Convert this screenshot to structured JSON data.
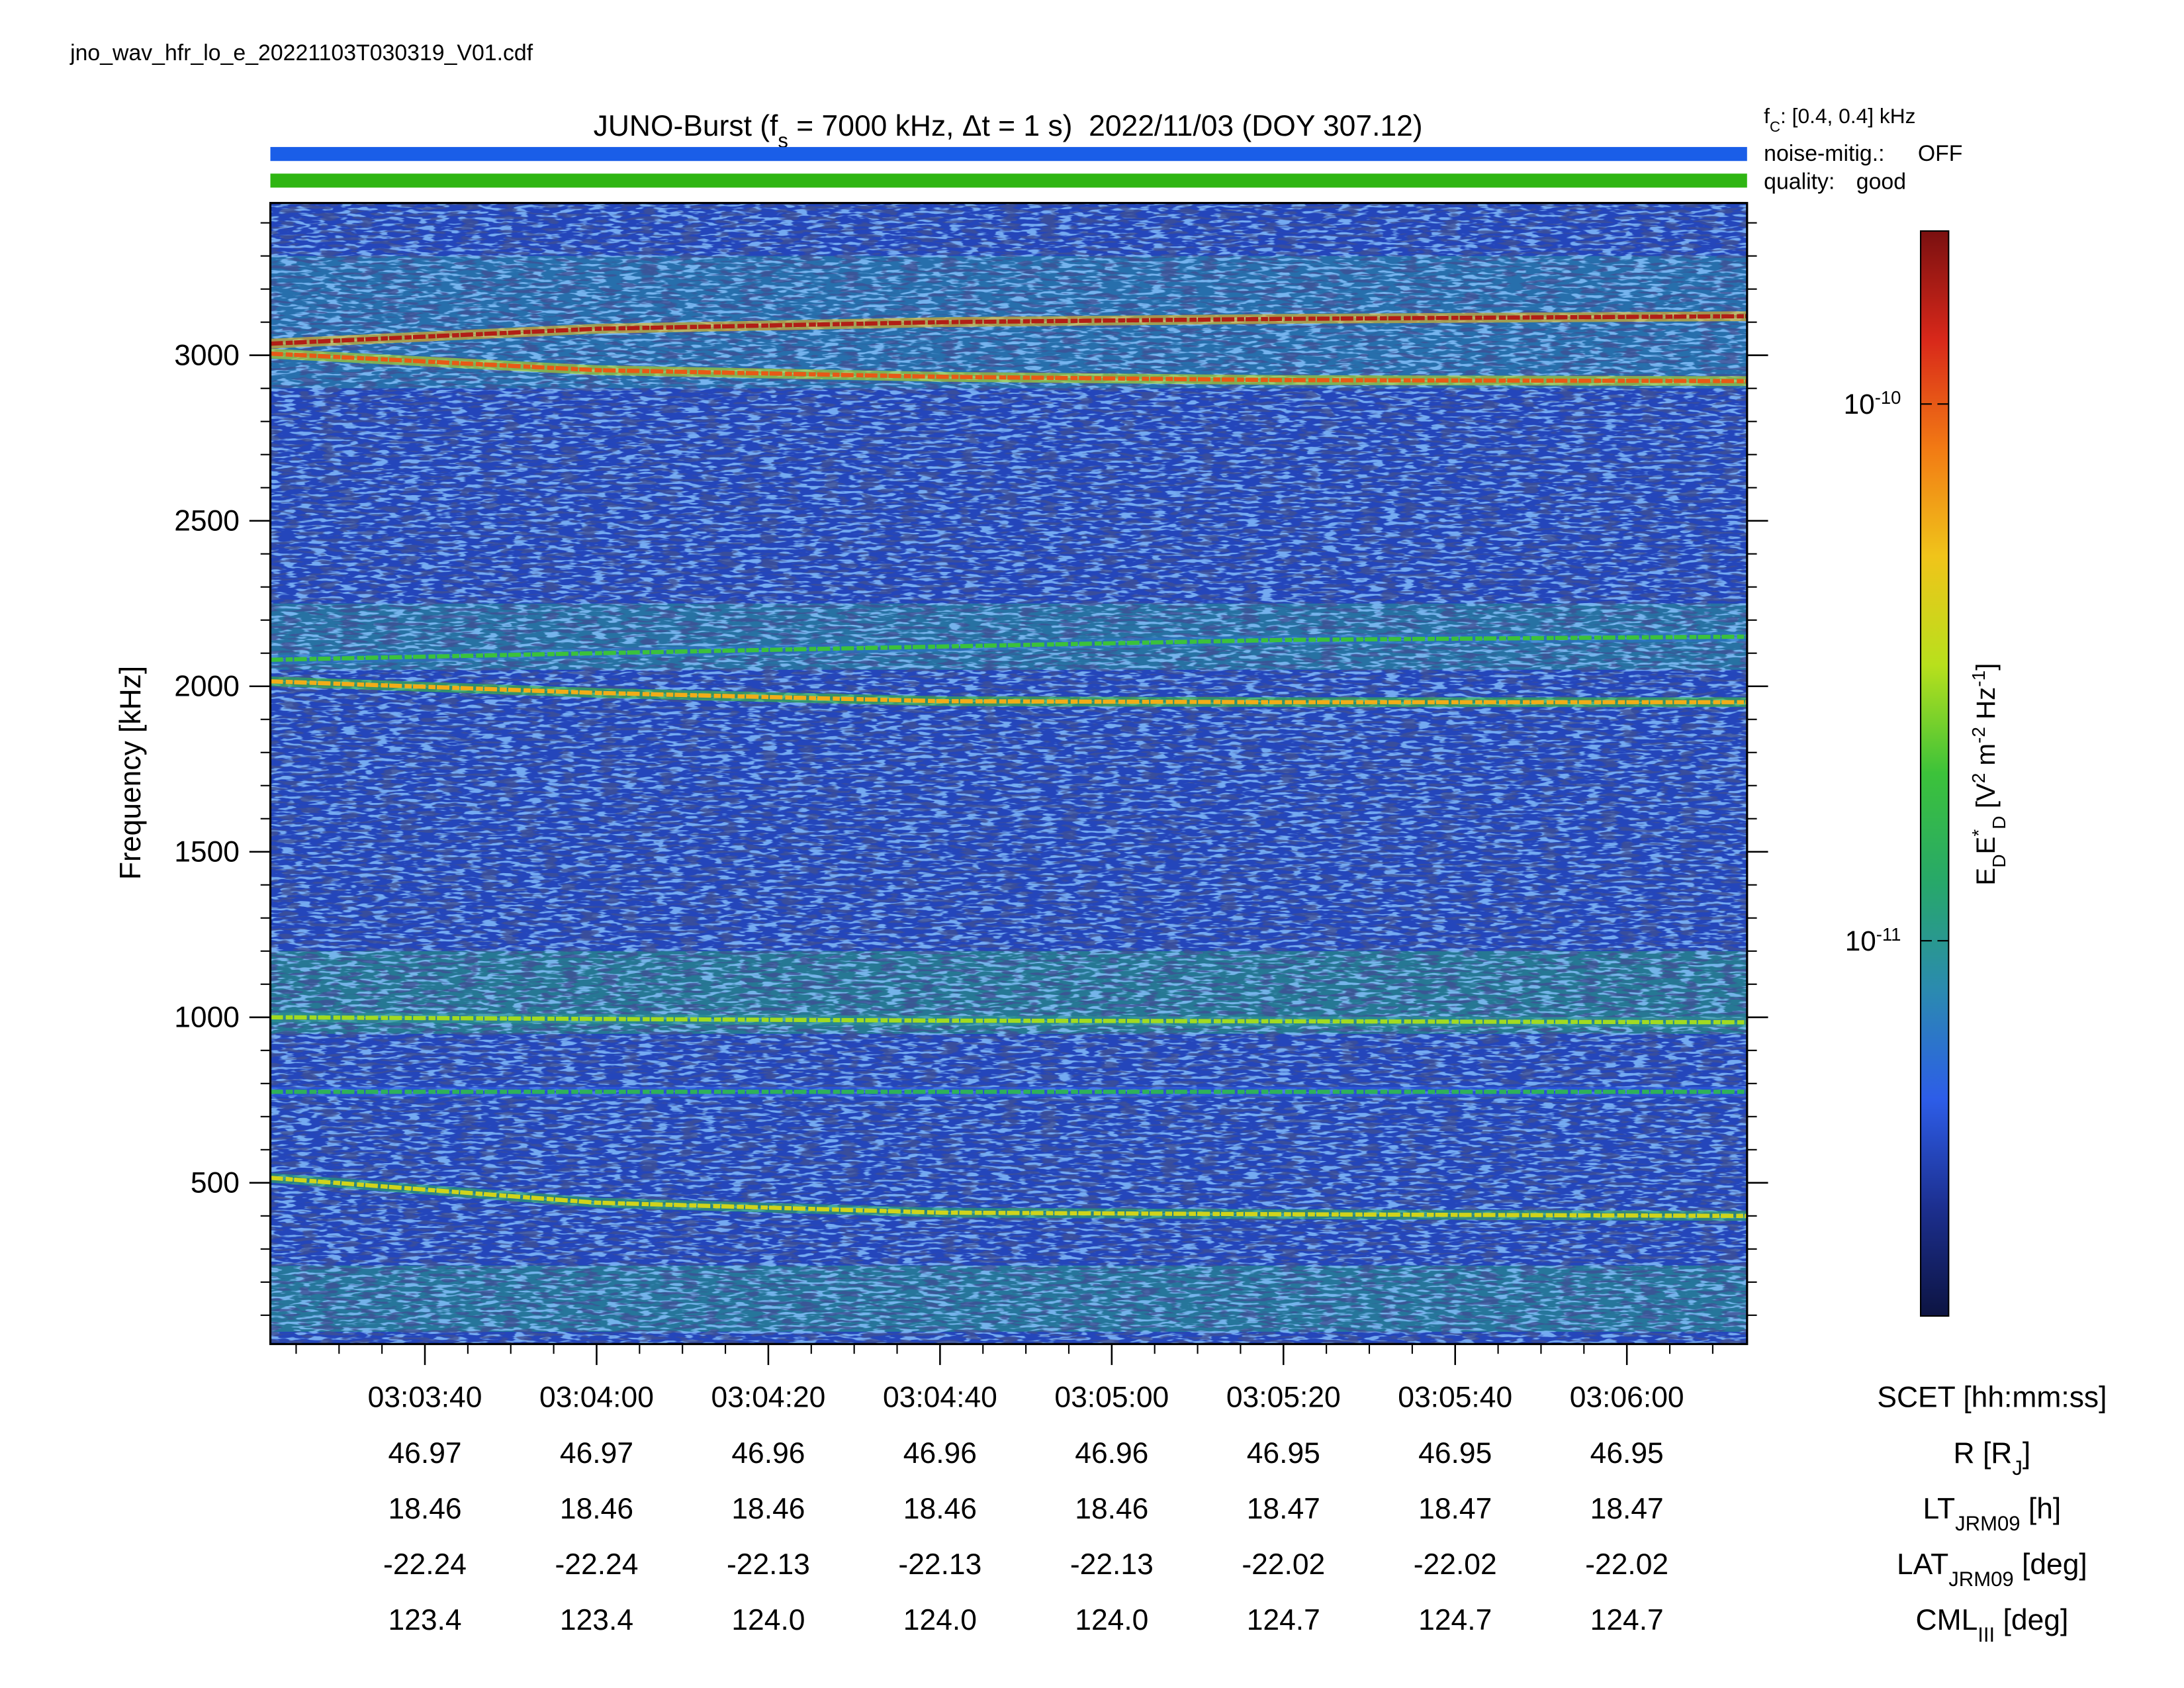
{
  "chart_data": {
    "type": "spectrogram",
    "filename": "jno_wav_hfr_lo_e_20221103T030319_V01.cdf",
    "title": [
      {
        "text": "JUNO-Burst (f"
      },
      {
        "text": "s",
        "shift": "sub"
      },
      {
        "text": " = 7000 kHz, Δt = 1 s)  2022/11/03 (DOY 307.12)"
      }
    ],
    "cutoff": [
      {
        "text": "f"
      },
      {
        "text": "C",
        "shift": "sub"
      },
      {
        "text": ": [0.4, 0.4] kHz"
      }
    ],
    "noise_mitigation": {
      "label": "noise-mitig.:",
      "value": "OFF",
      "color": "#1a5ee8"
    },
    "quality": {
      "label": "quality:",
      "value": "good",
      "color": "#2fb513"
    },
    "ylabel": "Frequency [kHz]",
    "xlim": [
      "03:03:22",
      "03:06:14"
    ],
    "xticks": [
      "03:03:40",
      "03:04:00",
      "03:04:20",
      "03:04:40",
      "03:05:00",
      "03:05:20",
      "03:05:40",
      "03:06:00"
    ],
    "xminorticks": [
      "03:03:25",
      "03:03:30",
      "03:03:35",
      "03:03:45",
      "03:03:50",
      "03:03:55",
      "03:04:05",
      "03:04:10",
      "03:04:15",
      "03:04:25",
      "03:04:30",
      "03:04:35",
      "03:04:45",
      "03:04:50",
      "03:04:55",
      "03:05:05",
      "03:05:10",
      "03:05:15",
      "03:05:25",
      "03:05:30",
      "03:05:35",
      "03:05:45",
      "03:05:50",
      "03:05:55",
      "03:06:05",
      "03:06:10"
    ],
    "ylim": [
      13,
      3460
    ],
    "yticks": [
      500,
      1000,
      1500,
      2000,
      2500,
      3000
    ],
    "yminorticks": [
      100,
      200,
      300,
      400,
      600,
      700,
      800,
      900,
      1100,
      1200,
      1300,
      1400,
      1600,
      1700,
      1800,
      1900,
      2100,
      2200,
      2300,
      2400,
      2600,
      2700,
      2800,
      2900,
      3100,
      3200,
      3300,
      3400
    ],
    "log_color_scale": true,
    "clim": [
      2e-12,
      2.1e-10
    ],
    "cticks": [
      {
        "value": 1e-10,
        "label": "10",
        "sup": "-10"
      },
      {
        "value": 1e-11,
        "label": "10",
        "sup": "-11"
      }
    ],
    "clabel": [
      {
        "text": "E"
      },
      {
        "text": "D",
        "shift": "sub"
      },
      {
        "text": "E"
      },
      {
        "text": "*",
        "shift": "super"
      },
      {
        "text": "D",
        "shift": "sub"
      },
      {
        "text": " [V"
      },
      {
        "text": "2",
        "shift": "super"
      },
      {
        "text": " m"
      },
      {
        "text": "-2",
        "shift": "super"
      },
      {
        "text": " Hz"
      },
      {
        "text": "-1",
        "shift": "super"
      },
      {
        "text": "]"
      }
    ],
    "colormap": [
      "#0d1442",
      "#1c2f8f",
      "#2d5de8",
      "#2b8ab0",
      "#27a869",
      "#3cc23a",
      "#b8e01c",
      "#f0c41a",
      "#f27a14",
      "#d8281a",
      "#7a1010"
    ],
    "background_level": 4e-12,
    "bands": [
      {
        "range": [
          50,
          250
        ],
        "level": 1.1e-11
      },
      {
        "range": [
          950,
          1200
        ],
        "level": 1.2e-11
      },
      {
        "range": [
          2050,
          2250
        ],
        "level": 1e-11
      },
      {
        "range": [
          2900,
          3300
        ],
        "level": 9e-12
      }
    ],
    "x": [
      "03:03:22",
      "03:04:00",
      "03:04:40",
      "03:05:20",
      "03:06:14"
    ],
    "tracks": [
      {
        "values": [
          3035,
          3080,
          3100,
          3110,
          3118
        ],
        "level": 1.6e-10
      },
      {
        "values": [
          3005,
          2955,
          2935,
          2925,
          2922
        ],
        "level": 1e-10
      },
      {
        "values": [
          2015,
          1980,
          1955,
          1952,
          1952
        ],
        "level": 6e-11
      },
      {
        "values": [
          2080,
          2100,
          2120,
          2140,
          2150
        ],
        "level": 2e-11
      },
      {
        "values": [
          1000,
          995,
          990,
          988,
          985
        ],
        "level": 3e-11
      },
      {
        "values": [
          775,
          775,
          775,
          775,
          775
        ],
        "level": 1.5e-11
      },
      {
        "values": [
          515,
          440,
          410,
          405,
          400
        ],
        "level": 4e-11
      }
    ],
    "ephemeris": {
      "x_label": "SCET [hh:mm:ss]",
      "rows": [
        {
          "label": [
            {
              "text": "R [R"
            },
            {
              "text": "J",
              "shift": "sub"
            },
            {
              "text": "]"
            }
          ],
          "values": [
            46.97,
            46.97,
            46.96,
            46.96,
            46.96,
            46.95,
            46.95,
            46.95
          ]
        },
        {
          "label": [
            {
              "text": "LT"
            },
            {
              "text": "JRM09",
              "shift": "sub"
            },
            {
              "text": " [h]"
            }
          ],
          "values": [
            18.46,
            18.46,
            18.46,
            18.46,
            18.46,
            18.47,
            18.47,
            18.47
          ]
        },
        {
          "label": [
            {
              "text": "LAT"
            },
            {
              "text": "JRM09",
              "shift": "sub"
            },
            {
              "text": " [deg]"
            }
          ],
          "values": [
            -22.24,
            -22.24,
            -22.13,
            -22.13,
            -22.13,
            -22.02,
            -22.02,
            -22.02
          ]
        },
        {
          "label": [
            {
              "text": "CML"
            },
            {
              "text": "III",
              "shift": "sub"
            },
            {
              "text": " [deg]"
            }
          ],
          "values": [
            123.4,
            123.4,
            {
              "value": 124,
              "label": "124.0"
            },
            {
              "value": 124,
              "label": "124.0"
            },
            {
              "value": 124,
              "label": "124.0"
            },
            124.7,
            124.7,
            124.7
          ]
        }
      ]
    }
  }
}
